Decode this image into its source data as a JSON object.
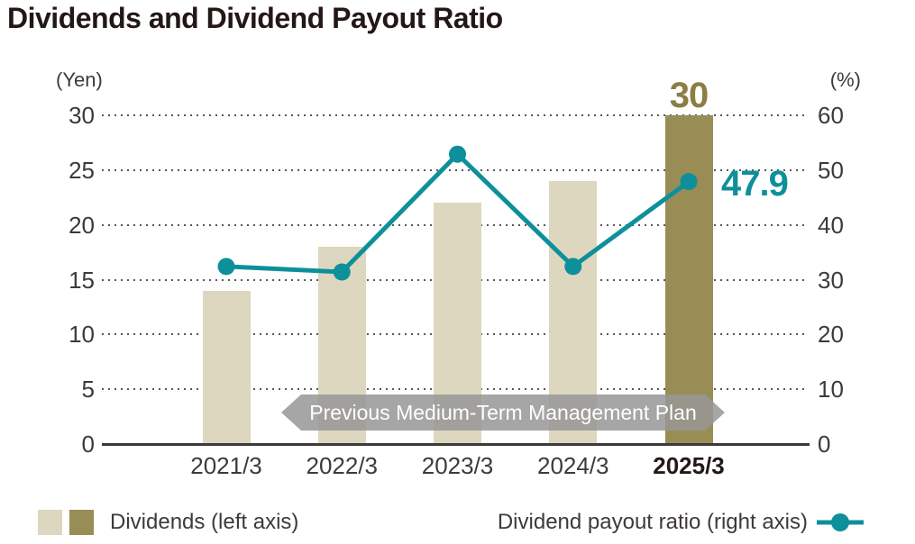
{
  "title": "Dividends and Dividend Payout Ratio",
  "chart_data": {
    "type": "combo (bar + line)",
    "categories": [
      "2021/3",
      "2022/3",
      "2023/3",
      "2024/3",
      "2025/3"
    ],
    "series": [
      {
        "name": "Dividends (left axis)",
        "type": "bar",
        "axis": "left",
        "unit": "Yen",
        "values": [
          14,
          18,
          22,
          24,
          30
        ],
        "highlight_index": 4,
        "bar_color": "#ded7bf",
        "highlight_color": "#988d55"
      },
      {
        "name": "Dividend payout ratio (right axis)",
        "type": "line",
        "axis": "right",
        "unit": "%",
        "values": [
          32.4,
          31.4,
          52.9,
          32.4,
          47.9
        ],
        "labeled_point": {
          "category": "2025/3",
          "label": "47.9"
        },
        "line_color": "#0e909b"
      }
    ],
    "left_axis": {
      "unit_label": "(Yen)",
      "ticks": [
        0,
        5,
        10,
        15,
        20,
        25,
        30
      ],
      "range": [
        0,
        30
      ]
    },
    "right_axis": {
      "unit_label": "(%)",
      "ticks": [
        0,
        10,
        20,
        30,
        40,
        50,
        60
      ],
      "range": [
        0,
        60
      ]
    },
    "grid": "dotted horizontal gridlines",
    "legend_position": "bottom",
    "annotations": [
      {
        "text": "30",
        "target": "2025/3 bar top",
        "color": "#8b7e44"
      },
      {
        "text": "47.9",
        "target": "2025/3 line point",
        "color": "#0e909b"
      }
    ],
    "banner": {
      "text": "Previous Medium-Term Management Plan",
      "color": "#969696"
    }
  },
  "legend": {
    "dividends_label": "Dividends (left axis)",
    "payout_label": "Dividend payout ratio (right axis)"
  },
  "colors": {
    "bar_light": "#ded7bf",
    "bar_highlight": "#988d55",
    "line_teal": "#0e909b",
    "title_text": "#231815",
    "axis_text": "#3e3a39",
    "grid_dot": "#595757",
    "banner_gray": "#969696"
  }
}
